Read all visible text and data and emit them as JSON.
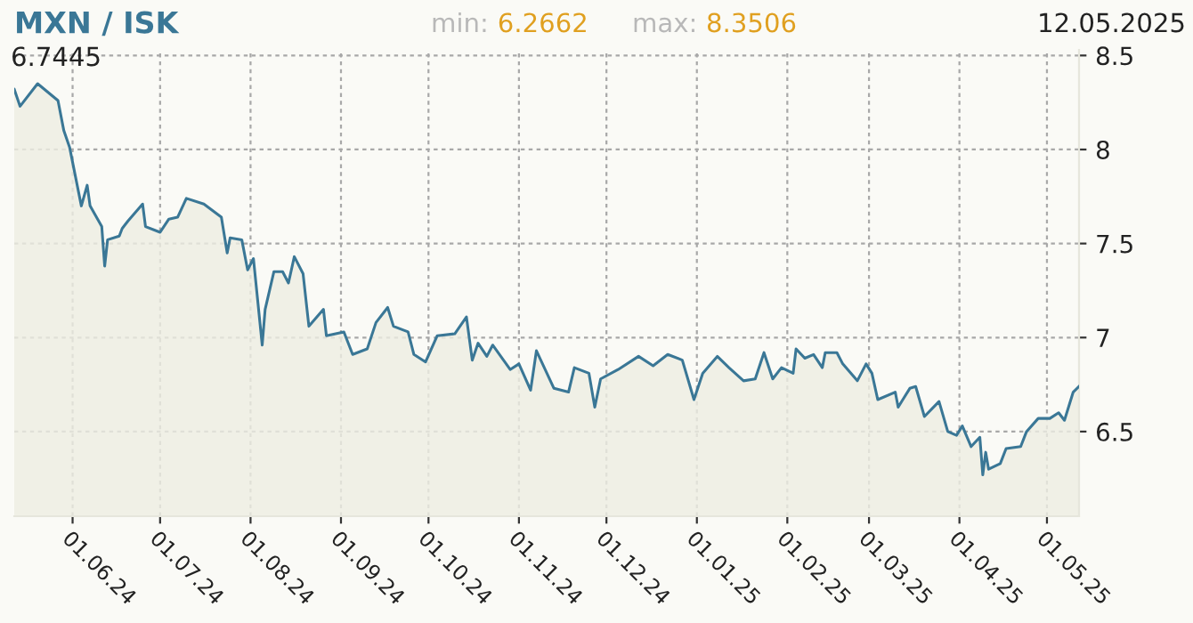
{
  "chart_data": {
    "type": "area",
    "title": "MXN / ISK",
    "annotations": [
      "min: 6.2662",
      "max: 8.3506",
      "12.05.2025",
      "6.7445"
    ],
    "x": [
      "2024-05-12",
      "2024-05-14",
      "2024-05-20",
      "2024-05-27",
      "2024-05-29",
      "2024-05-31",
      "2024-06-04",
      "2024-06-06",
      "2024-06-07",
      "2024-06-11",
      "2024-06-12",
      "2024-06-13",
      "2024-06-17",
      "2024-06-18",
      "2024-06-20",
      "2024-06-25",
      "2024-06-26",
      "2024-07-01",
      "2024-07-04",
      "2024-07-07",
      "2024-07-10",
      "2024-07-16",
      "2024-07-22",
      "2024-07-24",
      "2024-07-25",
      "2024-07-29",
      "2024-07-31",
      "2024-08-02",
      "2024-08-05",
      "2024-08-06",
      "2024-08-09",
      "2024-08-12",
      "2024-08-14",
      "2024-08-16",
      "2024-08-19",
      "2024-08-21",
      "2024-08-26",
      "2024-08-27",
      "2024-09-02",
      "2024-09-05",
      "2024-09-10",
      "2024-09-13",
      "2024-09-17",
      "2024-09-19",
      "2024-09-24",
      "2024-09-26",
      "2024-09-30",
      "2024-10-04",
      "2024-10-10",
      "2024-10-14",
      "2024-10-16",
      "2024-10-18",
      "2024-10-21",
      "2024-10-23",
      "2024-10-29",
      "2024-11-01",
      "2024-11-05",
      "2024-11-07",
      "2024-11-13",
      "2024-11-18",
      "2024-11-20",
      "2024-11-25",
      "2024-11-27",
      "2024-11-29",
      "2024-12-05",
      "2024-12-12",
      "2024-12-17",
      "2024-12-22",
      "2024-12-27",
      "2024-12-31",
      "2025-01-03",
      "2025-01-08",
      "2025-01-12",
      "2025-01-17",
      "2025-01-21",
      "2025-01-24",
      "2025-01-27",
      "2025-01-30",
      "2025-02-03",
      "2025-02-04",
      "2025-02-07",
      "2025-02-10",
      "2025-02-13",
      "2025-02-14",
      "2025-02-18",
      "2025-02-20",
      "2025-02-25",
      "2025-02-28",
      "2025-03-02",
      "2025-03-04",
      "2025-03-10",
      "2025-03-11",
      "2025-03-15",
      "2025-03-17",
      "2025-03-20",
      "2025-03-25",
      "2025-03-28",
      "2025-03-31",
      "2025-04-02",
      "2025-04-05",
      "2025-04-08",
      "2025-04-09",
      "2025-04-10",
      "2025-04-11",
      "2025-04-15",
      "2025-04-17",
      "2025-04-22",
      "2025-04-24",
      "2025-04-28",
      "2025-05-02",
      "2025-05-05",
      "2025-05-07",
      "2025-05-10",
      "2025-05-12"
    ],
    "series": [
      {
        "color": "#3a7796",
        "values": [
          8.32,
          8.23,
          8.35,
          8.26,
          8.1,
          8.01,
          7.7,
          7.81,
          7.7,
          7.59,
          7.38,
          7.52,
          7.54,
          7.58,
          7.62,
          7.71,
          7.59,
          7.56,
          7.63,
          7.64,
          7.74,
          7.71,
          7.64,
          7.45,
          7.53,
          7.52,
          7.36,
          7.42,
          6.96,
          7.15,
          7.35,
          7.35,
          7.29,
          7.43,
          7.34,
          7.06,
          7.15,
          7.01,
          7.03,
          6.91,
          6.94,
          7.08,
          7.16,
          7.06,
          7.03,
          6.91,
          6.87,
          7.01,
          7.02,
          7.11,
          6.88,
          6.97,
          6.9,
          6.96,
          6.83,
          6.86,
          6.72,
          6.93,
          6.73,
          6.71,
          6.84,
          6.81,
          6.63,
          6.78,
          6.83,
          6.9,
          6.85,
          6.91,
          6.88,
          6.67,
          6.81,
          6.9,
          6.84,
          6.77,
          6.78,
          6.92,
          6.78,
          6.84,
          6.81,
          6.94,
          6.89,
          6.91,
          6.84,
          6.92,
          6.92,
          6.86,
          6.77,
          6.86,
          6.81,
          6.67,
          6.71,
          6.63,
          6.73,
          6.74,
          6.58,
          6.66,
          6.5,
          6.48,
          6.53,
          6.42,
          6.47,
          6.27,
          6.39,
          6.3,
          6.33,
          6.41,
          6.42,
          6.5,
          6.57,
          6.57,
          6.6,
          6.56,
          6.71,
          6.74
        ]
      }
    ],
    "xlim": [
      "2024-05-12",
      "2025-05-12"
    ],
    "xticks": [
      {
        "value": "2024-06-01",
        "label": "01.06.24"
      },
      {
        "value": "2024-07-01",
        "label": "01.07.24"
      },
      {
        "value": "2024-08-01",
        "label": "01.08.24"
      },
      {
        "value": "2024-09-01",
        "label": "01.09.24"
      },
      {
        "value": "2024-10-01",
        "label": "01.10.24"
      },
      {
        "value": "2024-11-01",
        "label": "01.11.24"
      },
      {
        "value": "2024-12-01",
        "label": "01.12.24"
      },
      {
        "value": "2025-01-01",
        "label": "01.01.25"
      },
      {
        "value": "2025-02-01",
        "label": "01.02.25"
      },
      {
        "value": "2025-03-01",
        "label": "01.03.25"
      },
      {
        "value": "2025-04-01",
        "label": "01.04.25"
      },
      {
        "value": "2025-05-01",
        "label": "01.05.25"
      }
    ],
    "ylim": [
      6.05,
      8.53
    ],
    "yticks": [
      6.5,
      7,
      7.5,
      8,
      8.5
    ],
    "grid": true
  }
}
